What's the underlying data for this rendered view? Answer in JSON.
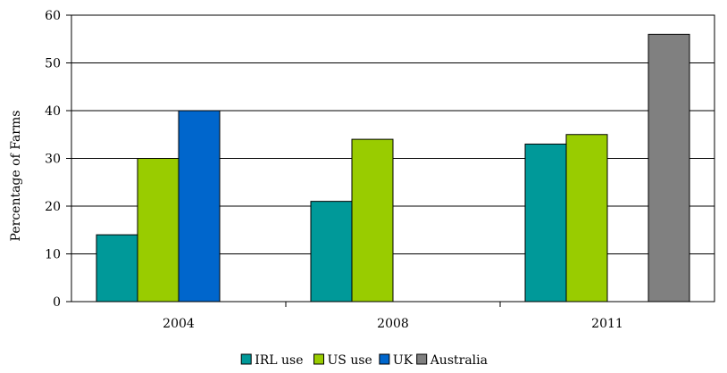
{
  "chart_data": {
    "type": "bar",
    "categories": [
      "2004",
      "2008",
      "2011"
    ],
    "series": [
      {
        "name": "IRL use",
        "color": "#009999",
        "values": [
          14,
          21,
          33
        ]
      },
      {
        "name": "US use",
        "color": "#99cc00",
        "values": [
          30,
          34,
          35
        ]
      },
      {
        "name": "UK",
        "color": "#0066cc",
        "values": [
          40,
          null,
          null
        ]
      },
      {
        "name": "Australia",
        "color": "#808080",
        "values": [
          null,
          null,
          56
        ]
      }
    ],
    "title": "",
    "xlabel": "",
    "ylabel": "Percentage of Farms",
    "ylim": [
      0,
      60
    ],
    "yticks": [
      0,
      10,
      20,
      30,
      40,
      50,
      60
    ],
    "grid": true,
    "legend_position": "bottom"
  }
}
